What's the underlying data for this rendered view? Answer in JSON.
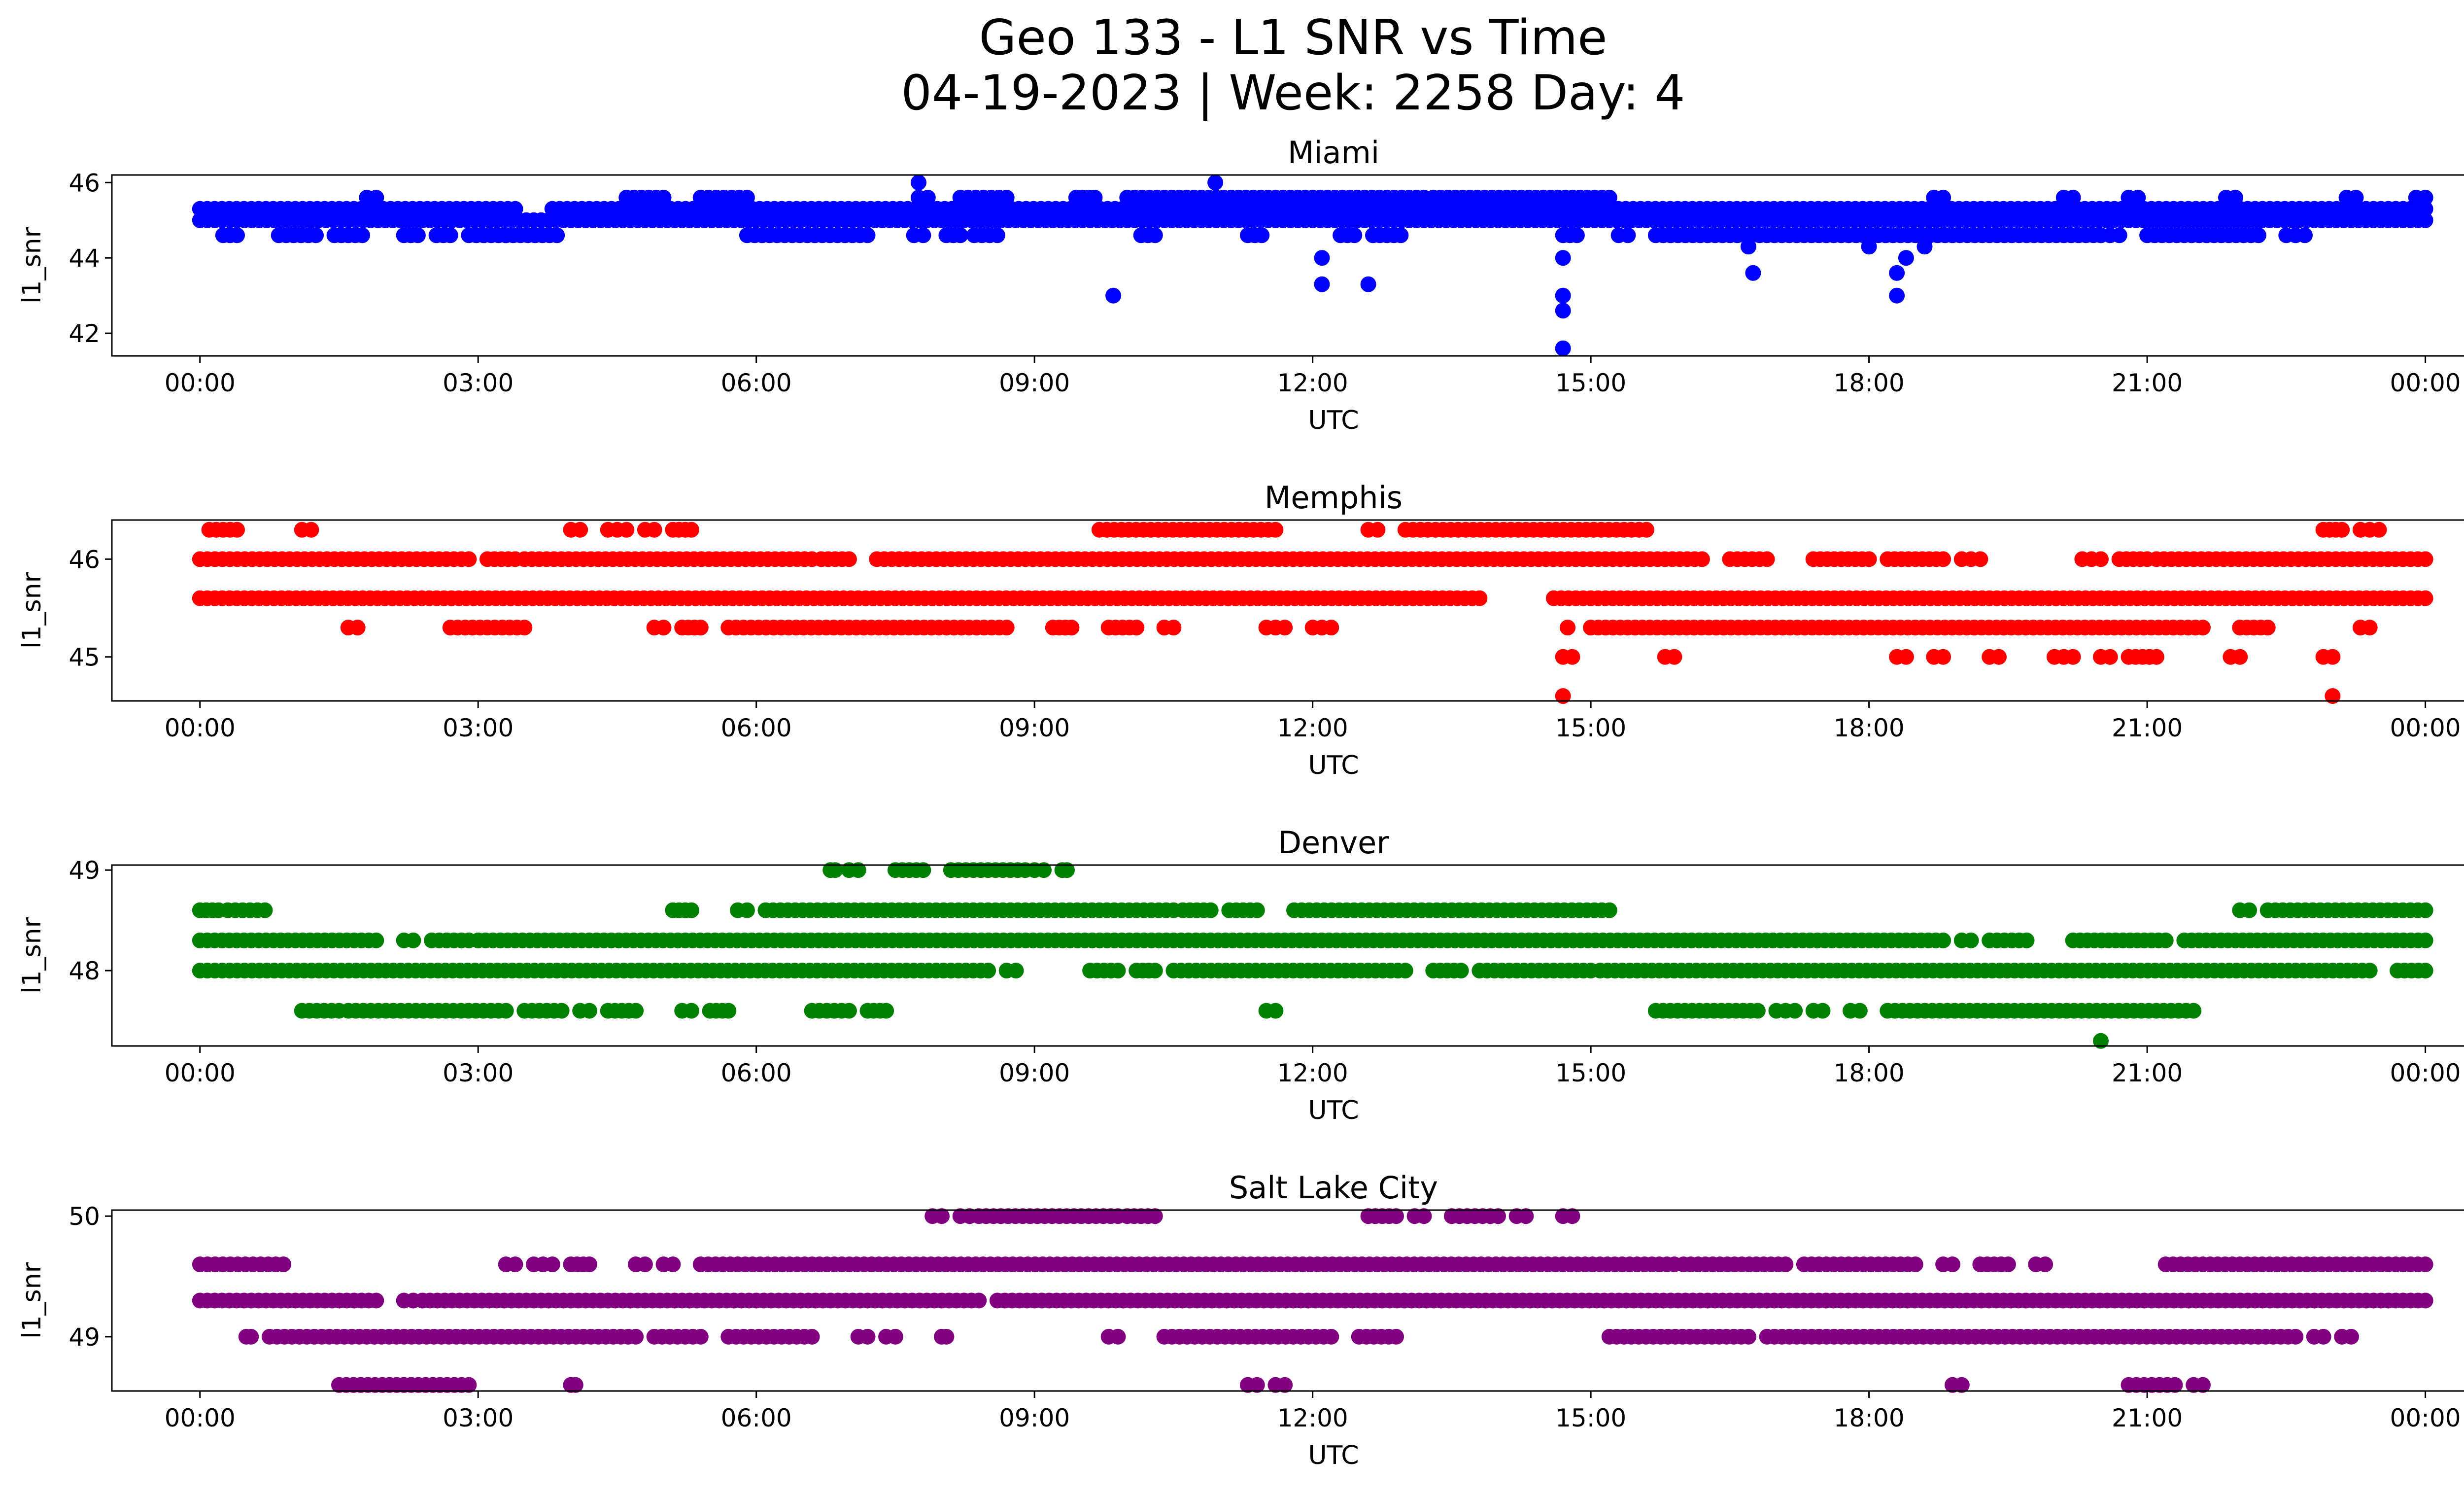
{
  "figure": {
    "title_line1": "Geo 133 - L1 SNR vs Time",
    "title_line2": "04-19-2023 | Week: 2258 Day: 4"
  },
  "chart_data": [
    {
      "type": "scatter",
      "title": "Miami",
      "xlabel": "UTC",
      "ylabel": "l1_snr",
      "color": "#0000ff",
      "x_unit": "hours UTC on 04-19-2023",
      "xlim": [
        -0.95,
        25.4
      ],
      "ylim": [
        41.4,
        46.2
      ],
      "x_ticks": [
        "00:00",
        "03:00",
        "06:00",
        "09:00",
        "12:00",
        "15:00",
        "18:00",
        "21:00",
        "00:00"
      ],
      "y_ticks": [
        42,
        44,
        46
      ],
      "bands": [
        {
          "y": 45.3,
          "segments": [
            [
              0,
              3.4
            ],
            [
              3.8,
              24
            ]
          ]
        },
        {
          "y": 45.0,
          "segments": [
            [
              0,
              24
            ]
          ]
        },
        {
          "y": 44.6,
          "segments": [
            [
              0.25,
              0.4
            ],
            [
              0.85,
              1.25
            ],
            [
              1.45,
              1.75
            ],
            [
              2.2,
              2.35
            ],
            [
              2.55,
              2.7
            ],
            [
              2.9,
              3.3
            ],
            [
              3.3,
              3.85
            ],
            [
              5.9,
              7.2
            ],
            [
              7.7,
              7.8
            ],
            [
              8.05,
              8.2
            ],
            [
              8.35,
              8.6
            ],
            [
              10.15,
              10.3
            ],
            [
              11.3,
              11.45
            ],
            [
              12.3,
              12.45
            ],
            [
              12.65,
              12.95
            ],
            [
              14.7,
              14.85
            ],
            [
              15.3,
              15.4
            ],
            [
              15.7,
              20.5
            ],
            [
              20.5,
              20.7
            ],
            [
              21,
              22.2
            ],
            [
              22.5,
              22.7
            ]
          ]
        },
        {
          "y": 45.6,
          "segments": [
            [
              1.8,
              1.9
            ],
            [
              4.6,
              5.0
            ],
            [
              5.4,
              5.9
            ],
            [
              7.75,
              7.85
            ],
            [
              8.2,
              8.7
            ],
            [
              9.45,
              9.65
            ],
            [
              10.0,
              13.2
            ],
            [
              13.3,
              15.2
            ],
            [
              18.7,
              18.8
            ],
            [
              20.1,
              20.2
            ],
            [
              20.8,
              20.9
            ],
            [
              21.85,
              21.95
            ],
            [
              23.15,
              23.25
            ],
            [
              23.9,
              24
            ]
          ]
        }
      ],
      "points": [
        [
          7.75,
          46.0
        ],
        [
          10.95,
          46.0
        ],
        [
          9.85,
          43.0
        ],
        [
          12.1,
          44.0
        ],
        [
          12.1,
          43.3
        ],
        [
          12.6,
          43.3
        ],
        [
          14.7,
          44.0
        ],
        [
          14.7,
          43.0
        ],
        [
          14.7,
          42.6
        ],
        [
          14.7,
          41.6
        ],
        [
          16.75,
          43.6
        ],
        [
          16.7,
          44.3
        ],
        [
          18.0,
          44.3
        ],
        [
          18.3,
          43.6
        ],
        [
          18.3,
          43.0
        ],
        [
          18.4,
          44.0
        ],
        [
          18.6,
          44.3
        ]
      ]
    },
    {
      "type": "scatter",
      "title": "Memphis",
      "xlabel": "UTC",
      "ylabel": "l1_snr",
      "color": "#ff0000",
      "x_unit": "hours UTC on 04-19-2023",
      "xlim": [
        -0.95,
        25.4
      ],
      "ylim": [
        44.55,
        46.4
      ],
      "x_ticks": [
        "00:00",
        "03:00",
        "06:00",
        "09:00",
        "12:00",
        "15:00",
        "18:00",
        "21:00",
        "00:00"
      ],
      "y_ticks": [
        45,
        46
      ],
      "bands": [
        {
          "y": 45.6,
          "segments": [
            [
              0,
              13.8
            ],
            [
              14.6,
              24
            ]
          ]
        },
        {
          "y": 46.0,
          "segments": [
            [
              0,
              2.9
            ],
            [
              3.1,
              3.4
            ],
            [
              3.5,
              6.6
            ],
            [
              6.7,
              7.0
            ],
            [
              7.3,
              16.2
            ],
            [
              16.5,
              16.9
            ],
            [
              17.4,
              18.0
            ],
            [
              18.2,
              18.8
            ],
            [
              19.0,
              19.2
            ],
            [
              20.3,
              20.5
            ],
            [
              20.7,
              21.0
            ],
            [
              21.1,
              24
            ]
          ]
        },
        {
          "y": 45.3,
          "segments": [
            [
              1.6,
              1.7
            ],
            [
              2.7,
              3.5
            ],
            [
              4.9,
              5.0
            ],
            [
              5.2,
              5.4
            ],
            [
              5.7,
              8.7
            ],
            [
              9.2,
              9.4
            ],
            [
              9.8,
              10.1
            ],
            [
              10.4,
              10.5
            ],
            [
              11.5,
              11.7
            ],
            [
              12.0,
              12.2
            ],
            [
              15.0,
              21.6
            ],
            [
              22.0,
              22.3
            ],
            [
              23.3,
              23.4
            ]
          ]
        },
        {
          "y": 46.3,
          "segments": [
            [
              0.1,
              0.4
            ],
            [
              1.1,
              1.2
            ],
            [
              4.0,
              4.1
            ],
            [
              4.4,
              4.6
            ],
            [
              4.8,
              4.9
            ],
            [
              5.1,
              5.3
            ],
            [
              9.7,
              11.6
            ],
            [
              12.6,
              12.7
            ],
            [
              13.0,
              15.6
            ],
            [
              22.9,
              23.1
            ],
            [
              23.3,
              23.5
            ]
          ]
        },
        {
          "y": 45.0,
          "segments": [
            [
              14.7,
              14.8
            ],
            [
              15.8,
              15.9
            ],
            [
              18.3,
              18.4
            ],
            [
              18.7,
              18.8
            ],
            [
              19.3,
              19.4
            ],
            [
              20.0,
              20.2
            ],
            [
              20.5,
              20.6
            ],
            [
              20.8,
              21.1
            ],
            [
              21.9,
              22.0
            ],
            [
              22.9,
              23.0
            ]
          ]
        }
      ],
      "points": [
        [
          14.7,
          44.6
        ],
        [
          14.75,
          45.3
        ],
        [
          23.0,
          44.6
        ]
      ]
    },
    {
      "type": "scatter",
      "title": "Denver",
      "xlabel": "UTC",
      "ylabel": "l1_snr",
      "color": "#008000",
      "x_unit": "hours UTC on 04-19-2023",
      "xlim": [
        -0.95,
        25.4
      ],
      "ylim": [
        47.25,
        49.05
      ],
      "x_ticks": [
        "00:00",
        "03:00",
        "06:00",
        "09:00",
        "12:00",
        "15:00",
        "18:00",
        "21:00",
        "00:00"
      ],
      "y_ticks": [
        48,
        49
      ],
      "bands": [
        {
          "y": 48.3,
          "segments": [
            [
              0,
              1.9
            ],
            [
              2.2,
              2.3
            ],
            [
              2.5,
              2.9
            ],
            [
              3.0,
              18.8
            ],
            [
              19.0,
              19.1
            ],
            [
              19.3,
              19.7
            ],
            [
              20.2,
              21.2
            ],
            [
              21.4,
              24
            ]
          ]
        },
        {
          "y": 48.0,
          "segments": [
            [
              0,
              8.5
            ],
            [
              8.7,
              8.8
            ],
            [
              9.6,
              9.9
            ],
            [
              10.1,
              10.3
            ],
            [
              10.5,
              13.0
            ],
            [
              13.3,
              13.6
            ],
            [
              13.8,
              15.0
            ],
            [
              15.1,
              23.4
            ],
            [
              23.7,
              24
            ]
          ]
        },
        {
          "y": 48.6,
          "segments": [
            [
              0,
              0.2
            ],
            [
              0.3,
              0.7
            ],
            [
              5.1,
              5.3
            ],
            [
              5.8,
              5.9
            ],
            [
              6.1,
              10.5
            ],
            [
              10.6,
              10.9
            ],
            [
              11.1,
              11.4
            ],
            [
              11.8,
              15.2
            ],
            [
              22.0,
              22.1
            ],
            [
              22.3,
              24
            ]
          ]
        },
        {
          "y": 47.6,
          "segments": [
            [
              1.1,
              1.5
            ],
            [
              1.6,
              3.3
            ],
            [
              3.5,
              3.9
            ],
            [
              4.1,
              4.2
            ],
            [
              4.4,
              4.7
            ],
            [
              5.2,
              5.3
            ],
            [
              5.5,
              5.7
            ],
            [
              6.6,
              7.0
            ],
            [
              7.2,
              7.4
            ],
            [
              11.5,
              11.6
            ],
            [
              15.7,
              16.8
            ],
            [
              17.0,
              17.2
            ],
            [
              17.4,
              17.5
            ],
            [
              17.8,
              17.9
            ],
            [
              18.2,
              21.5
            ]
          ]
        },
        {
          "y": 49.0,
          "segments": [
            [
              6.8,
              6.85
            ],
            [
              7.0,
              7.1
            ],
            [
              7.5,
              7.8
            ],
            [
              8.1,
              8.9
            ],
            [
              9.0,
              9.1
            ],
            [
              9.3,
              9.35
            ]
          ]
        }
      ],
      "points": [
        [
          20.5,
          47.3
        ]
      ]
    },
    {
      "type": "scatter",
      "title": "Salt Lake City",
      "xlabel": "UTC",
      "ylabel": "l1_snr",
      "color": "#800080",
      "x_unit": "hours UTC on 04-19-2023",
      "xlim": [
        -0.95,
        25.4
      ],
      "ylim": [
        48.55,
        50.05
      ],
      "x_ticks": [
        "00:00",
        "03:00",
        "06:00",
        "09:00",
        "12:00",
        "15:00",
        "18:00",
        "21:00",
        "00:00"
      ],
      "y_ticks": [
        49,
        50
      ],
      "bands": [
        {
          "y": 49.3,
          "segments": [
            [
              0,
              1.9
            ],
            [
              2.2,
              2.3
            ],
            [
              2.4,
              8.4
            ],
            [
              8.6,
              24
            ]
          ]
        },
        {
          "y": 49.0,
          "segments": [
            [
              0.5,
              0.55
            ],
            [
              0.75,
              4.7
            ],
            [
              4.9,
              5.4
            ],
            [
              5.7,
              6.6
            ],
            [
              7.1,
              7.2
            ],
            [
              7.4,
              7.5
            ],
            [
              8.0,
              8.05
            ],
            [
              9.8,
              9.9
            ],
            [
              10.4,
              12.2
            ],
            [
              12.5,
              12.9
            ],
            [
              15.2,
              16.7
            ],
            [
              16.9,
              22.6
            ],
            [
              22.8,
              22.9
            ],
            [
              23.1,
              23.2
            ]
          ]
        },
        {
          "y": 49.6,
          "segments": [
            [
              0,
              0.9
            ],
            [
              3.3,
              3.4
            ],
            [
              3.6,
              3.8
            ],
            [
              4.0,
              4.2
            ],
            [
              4.7,
              4.8
            ],
            [
              5.0,
              5.1
            ],
            [
              5.4,
              5.8
            ],
            [
              5.8,
              15.9
            ],
            [
              16.0,
              17.1
            ],
            [
              17.3,
              18.5
            ],
            [
              18.8,
              18.9
            ],
            [
              19.2,
              19.5
            ],
            [
              19.8,
              19.9
            ],
            [
              21.2,
              24
            ]
          ]
        },
        {
          "y": 48.6,
          "segments": [
            [
              1.5,
              2.9
            ],
            [
              4.0,
              4.05
            ],
            [
              11.3,
              11.4
            ],
            [
              11.6,
              11.7
            ],
            [
              18.9,
              19.0
            ],
            [
              20.8,
              21.3
            ],
            [
              21.5,
              21.6
            ]
          ]
        },
        {
          "y": 50.0,
          "segments": [
            [
              7.9,
              8.0
            ],
            [
              8.2,
              8.3
            ],
            [
              8.4,
              9.9
            ],
            [
              10.0,
              10.3
            ],
            [
              12.6,
              12.9
            ],
            [
              13.1,
              13.2
            ],
            [
              13.5,
              14.0
            ],
            [
              14.2,
              14.3
            ],
            [
              14.7,
              14.8
            ]
          ]
        }
      ],
      "points": []
    }
  ]
}
